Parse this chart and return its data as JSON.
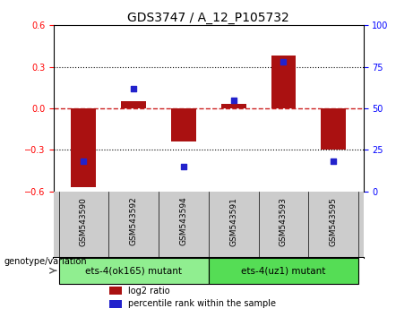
{
  "title": "GDS3747 / A_12_P105732",
  "samples": [
    "GSM543590",
    "GSM543592",
    "GSM543594",
    "GSM543591",
    "GSM543593",
    "GSM543595"
  ],
  "log2_ratio": [
    -0.57,
    0.05,
    -0.24,
    0.03,
    0.38,
    -0.3
  ],
  "percentile_rank": [
    18,
    62,
    15,
    55,
    78,
    18
  ],
  "ylim_left": [
    -0.6,
    0.6
  ],
  "ylim_right": [
    0,
    100
  ],
  "yticks_left": [
    -0.6,
    -0.3,
    0.0,
    0.3,
    0.6
  ],
  "yticks_right": [
    0,
    25,
    50,
    75,
    100
  ],
  "bar_color": "#aa1111",
  "dot_color": "#2222cc",
  "groups": [
    {
      "label": "ets-4(ok165) mutant",
      "indices": [
        0,
        1,
        2
      ],
      "color": "#90ee90"
    },
    {
      "label": "ets-4(uz1) mutant",
      "indices": [
        3,
        4,
        5
      ],
      "color": "#55dd55"
    }
  ],
  "group_label": "genotype/variation",
  "legend_bar": "log2 ratio",
  "legend_dot": "percentile rank within the sample",
  "zero_line_color": "#cc2222",
  "title_fontsize": 10,
  "tick_fontsize": 7,
  "xlabel_bg": "#cccccc",
  "bar_width": 0.5
}
